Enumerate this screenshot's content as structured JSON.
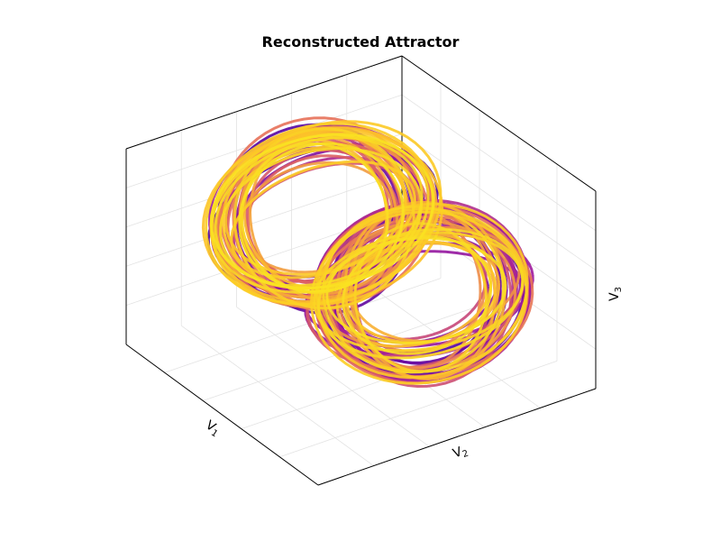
{
  "chart_data": {
    "type": "line",
    "subtype": "3d-trajectory",
    "title": "Reconstructed Attractor",
    "xlabel": "V",
    "xlabel_sub": "1",
    "ylabel": "V",
    "ylabel_sub": "2",
    "zlabel": "V",
    "zlabel_sub": "3",
    "grid": true,
    "ticks_visible": false,
    "legend": "none",
    "colormap": "plasma",
    "colormap_range": [
      "#4c02a1",
      "#9c179e",
      "#e56b5d",
      "#fdc328",
      "#f9e221"
    ],
    "series": [
      {
        "trajectory": "double-scroll attractor, two lobes (left-upper and right-lower), colored by time from dark purple to yellow",
        "lobes": 2
      }
    ]
  }
}
